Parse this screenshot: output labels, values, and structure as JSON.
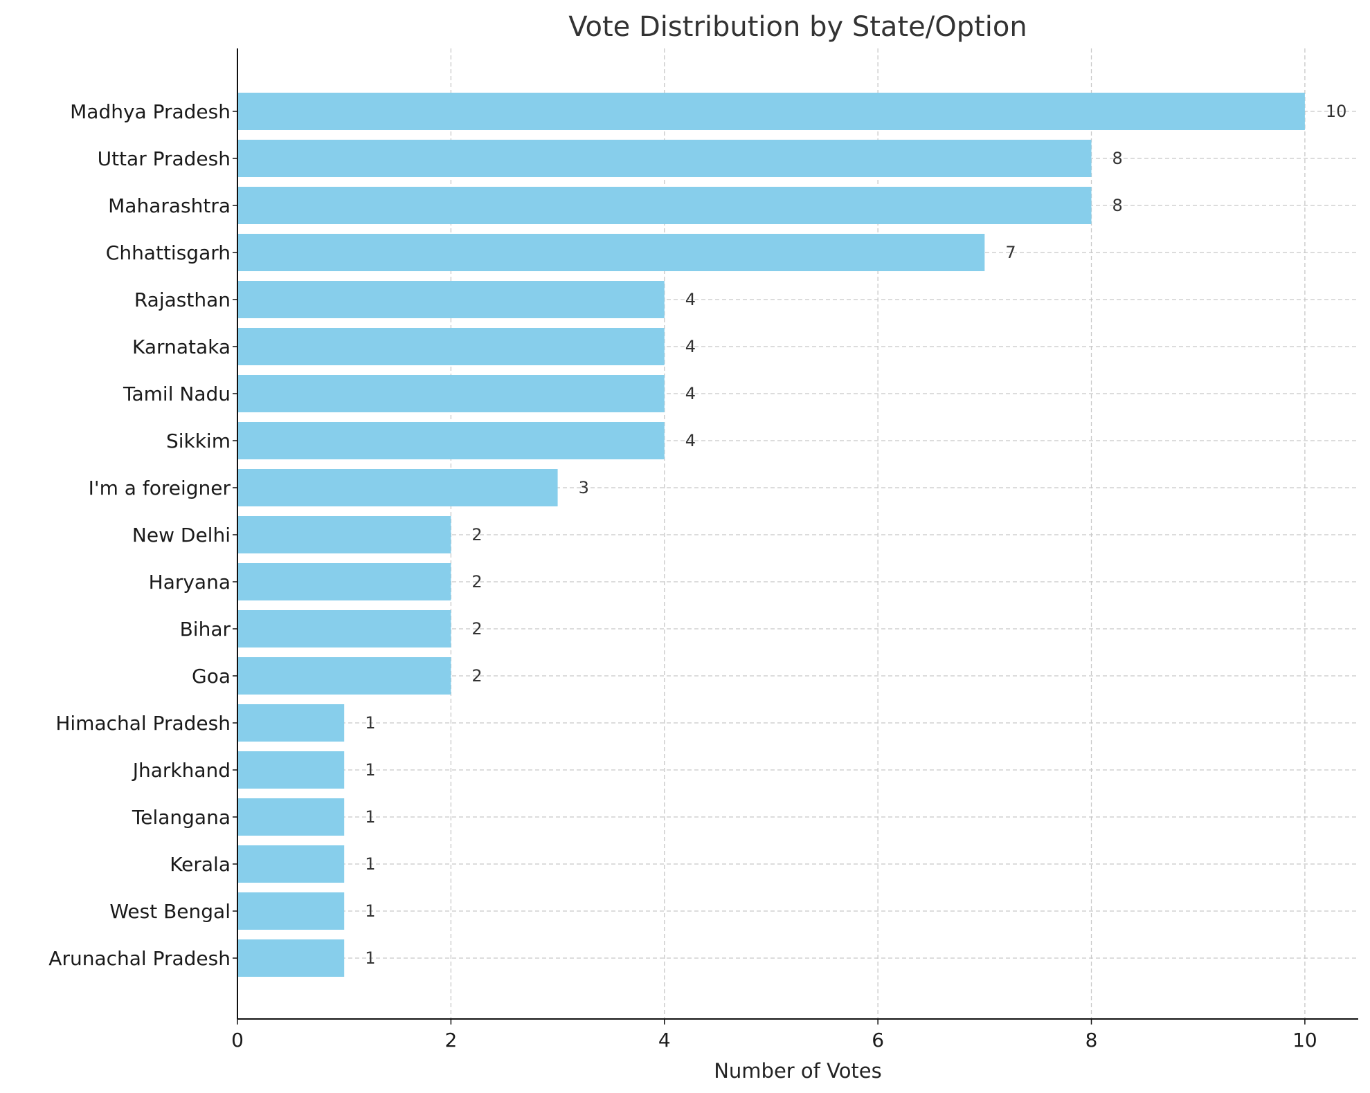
{
  "chart_data": {
    "type": "bar",
    "orientation": "horizontal",
    "title": "Vote Distribution by State/Option",
    "xlabel": "Number of Votes",
    "ylabel": "",
    "categories": [
      "Madhya Pradesh",
      "Uttar Pradesh",
      "Maharashtra",
      "Chhattisgarh",
      "Rajasthan",
      "Karnataka",
      "Tamil Nadu",
      "Sikkim",
      "I'm a foreigner",
      "New Delhi",
      "Haryana",
      "Bihar",
      "Goa",
      "Himachal Pradesh",
      "Jharkhand",
      "Telangana",
      "Kerala",
      "West Bengal",
      "Arunachal Pradesh"
    ],
    "values": [
      10,
      8,
      8,
      7,
      4,
      4,
      4,
      4,
      3,
      2,
      2,
      2,
      2,
      1,
      1,
      1,
      1,
      1,
      1
    ],
    "xlim": [
      0,
      10.5
    ],
    "xticks": [
      0,
      2,
      4,
      6,
      8,
      10
    ],
    "grid": true,
    "grid_style": "dashed",
    "show_value_labels": true,
    "bar_color": "#87ceeb"
  }
}
